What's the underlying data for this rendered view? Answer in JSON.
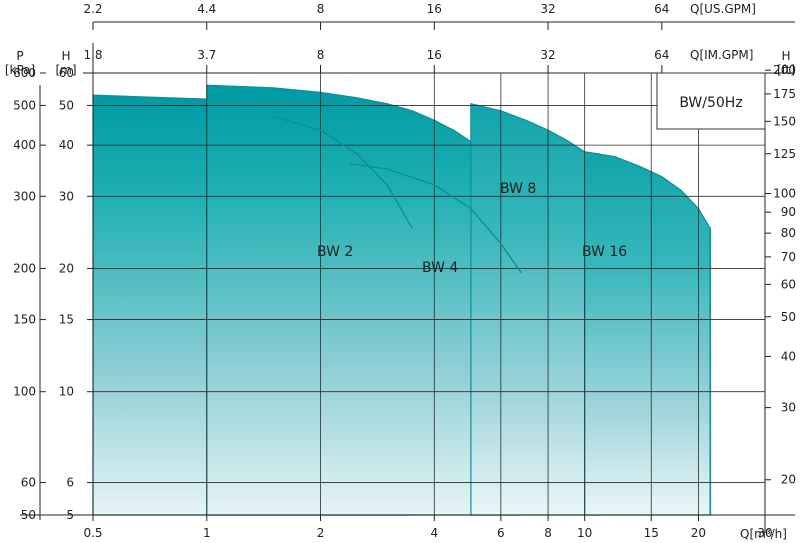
{
  "chart_data": {
    "type": "area",
    "title": "BW/50Hz",
    "x_axis": {
      "label": "Q[m³/h]",
      "scale": "log",
      "range": [
        0.5,
        30
      ],
      "ticks": [
        0.5,
        1,
        2,
        4,
        6,
        8,
        10,
        15,
        20,
        30
      ],
      "tick_labels": [
        "0.5",
        "1",
        "2",
        "4",
        "6",
        "8",
        "10",
        "15",
        "20",
        "30"
      ]
    },
    "x_axis_top_im": {
      "label": "Q[IM.GPM]",
      "ticks": [
        1.8,
        3.7,
        8,
        16,
        32,
        64
      ],
      "tick_labels": [
        "1.8",
        "3.7",
        "8",
        "16",
        "32",
        "64"
      ],
      "tick_positions_m3h": [
        0.5,
        1,
        2,
        4,
        8,
        16
      ]
    },
    "x_axis_top_us": {
      "label": "Q[US.GPM]",
      "ticks": [
        2.2,
        4.4,
        8,
        16,
        32,
        64
      ],
      "tick_labels": [
        "2.2",
        "4.4",
        "8",
        "16",
        "32",
        "64"
      ],
      "tick_positions_m3h": [
        0.5,
        1,
        2,
        4,
        8,
        16
      ]
    },
    "y_axis_head_m": {
      "label": "H [m]",
      "scale": "log",
      "range": [
        5,
        60
      ],
      "ticks": [
        5,
        6,
        10,
        15,
        20,
        30,
        40,
        50,
        60
      ],
      "tick_labels": [
        "5",
        "6",
        "10",
        "15",
        "20",
        "30",
        "40",
        "50",
        "60"
      ]
    },
    "y_axis_pressure_kpa": {
      "label": "P [kPa]",
      "ticks": [
        50,
        60,
        100,
        150,
        200,
        300,
        400,
        500,
        600
      ],
      "tick_labels": [
        "50",
        "60",
        "100",
        "150",
        "200",
        "300",
        "400",
        "500",
        "600"
      ],
      "tick_positions_m": [
        5,
        6,
        10,
        15,
        20,
        30,
        40,
        50,
        60
      ]
    },
    "y_axis_head_ft": {
      "label": "H [ft]",
      "ticks": [
        20,
        30,
        40,
        50,
        60,
        70,
        80,
        90,
        100,
        125,
        150,
        175,
        200
      ],
      "tick_labels": [
        "20",
        "30",
        "40",
        "50",
        "60",
        "70",
        "80",
        "90",
        "100",
        "125",
        "150",
        "175",
        "200"
      ]
    },
    "grid": true,
    "series": [
      {
        "name": "BW 2",
        "q_min": 0.5,
        "q_max": 3.5,
        "envelope": [
          [
            0.5,
            53
          ],
          [
            0.8,
            52.2
          ],
          [
            1.0,
            51.8
          ],
          [
            1.2,
            51
          ],
          [
            1.5,
            49.5
          ],
          [
            2.0,
            46.5
          ],
          [
            2.5,
            41
          ],
          [
            3.0,
            34
          ],
          [
            3.3,
            29.5
          ],
          [
            3.5,
            25.5
          ]
        ]
      },
      {
        "name": "BW 4",
        "q_min": 1.0,
        "q_max": 6.8,
        "envelope": [
          [
            1.0,
            56
          ],
          [
            1.5,
            55.2
          ],
          [
            2.0,
            53.8
          ],
          [
            2.5,
            52.2
          ],
          [
            3.0,
            50.5
          ],
          [
            3.5,
            48.5
          ],
          [
            4.0,
            46
          ],
          [
            4.5,
            43.5
          ],
          [
            5.0,
            40.8
          ],
          [
            5.5,
            37.5
          ],
          [
            6.0,
            33.5
          ],
          [
            6.5,
            30
          ],
          [
            6.8,
            28
          ]
        ]
      },
      {
        "name": "BW 8",
        "q_min": 5.0,
        "q_max": 11.0,
        "envelope": [
          [
            5.0,
            50.5
          ],
          [
            6.0,
            48.5
          ],
          [
            7.0,
            46
          ],
          [
            8.0,
            43.5
          ],
          [
            9.0,
            41
          ],
          [
            10.0,
            38.5
          ],
          [
            11.0,
            38
          ]
        ]
      },
      {
        "name": "BW 16",
        "q_min": 10.0,
        "q_max": 21.5,
        "envelope": [
          [
            10.0,
            38.5
          ],
          [
            12.0,
            37.5
          ],
          [
            14.0,
            35.5
          ],
          [
            16.0,
            33.5
          ],
          [
            18.0,
            31
          ],
          [
            20.0,
            28
          ],
          [
            21.5,
            25
          ]
        ]
      }
    ],
    "inner_curves": [
      {
        "series": "BW 2",
        "points": [
          [
            1.5,
            47
          ],
          [
            2.0,
            43.5
          ],
          [
            2.5,
            38
          ],
          [
            3.0,
            32
          ],
          [
            3.5,
            25
          ]
        ]
      },
      {
        "series": "BW 4",
        "points": [
          [
            2.4,
            36
          ],
          [
            3.0,
            35
          ],
          [
            4.0,
            32
          ],
          [
            5.0,
            28
          ],
          [
            6.0,
            23
          ],
          [
            6.8,
            19.5
          ]
        ]
      }
    ]
  }
}
